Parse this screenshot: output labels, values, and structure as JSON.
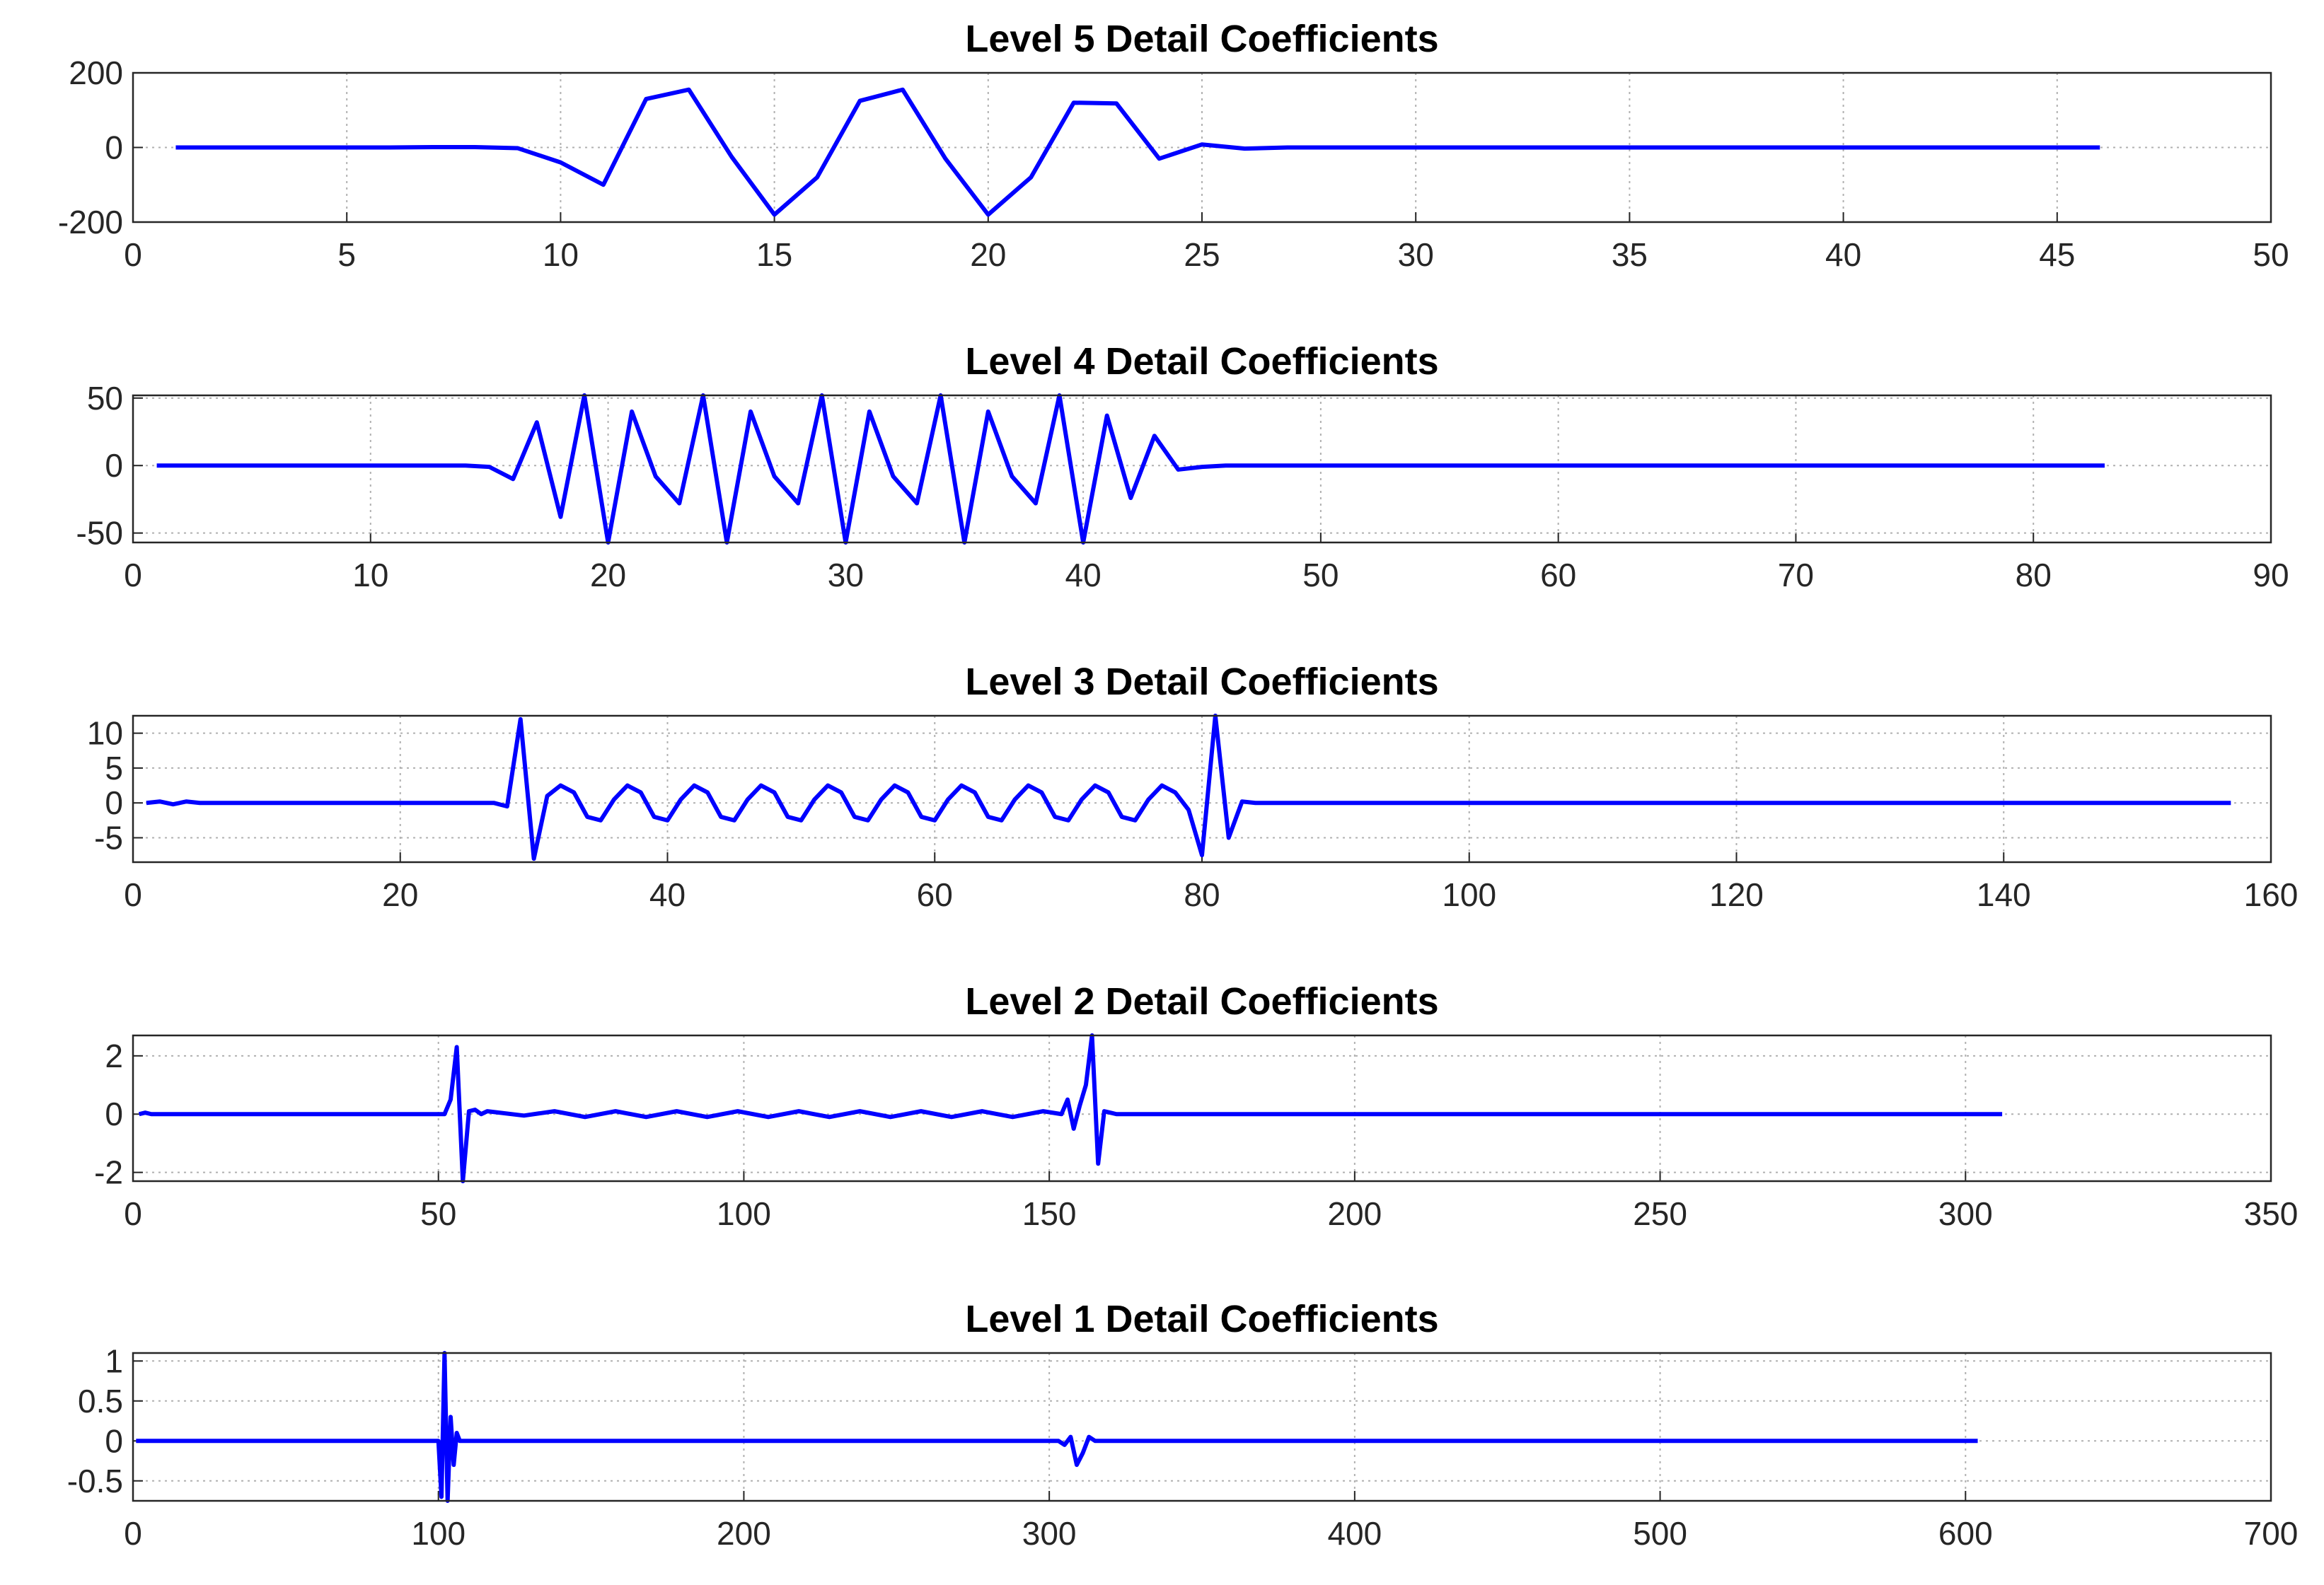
{
  "chart_data": [
    {
      "type": "line",
      "title": "Level 5 Detail Coefficients",
      "color": "#0000ff",
      "grid": true,
      "x": [
        1,
        6,
        7,
        8,
        9,
        10,
        11,
        12,
        13,
        14,
        15,
        16,
        17,
        18,
        19,
        20,
        21,
        22,
        23,
        24,
        25,
        26,
        27,
        46
      ],
      "values": [
        0,
        0,
        1,
        1,
        -2,
        -40,
        -100,
        130,
        155,
        -25,
        -180,
        -80,
        125,
        155,
        -30,
        -180,
        -80,
        120,
        118,
        -30,
        8,
        -3,
        0,
        0
      ],
      "xlim": [
        0,
        50
      ],
      "xticks": [
        0,
        5,
        10,
        15,
        20,
        25,
        30,
        35,
        40,
        45,
        50
      ],
      "ylim": [
        -200,
        200
      ],
      "yticks": [
        -200,
        0,
        200
      ]
    },
    {
      "type": "line",
      "title": "Level 4 Detail Coefficients",
      "color": "#0000ff",
      "grid": true,
      "x": [
        1,
        14,
        15,
        16,
        17,
        18,
        19,
        20,
        21,
        22,
        23,
        24,
        25,
        26,
        27,
        28,
        29,
        30,
        31,
        32,
        33,
        34,
        35,
        36,
        37,
        38,
        39,
        40,
        41,
        42,
        43,
        44,
        45,
        46,
        83
      ],
      "values": [
        0,
        0,
        -1,
        -10,
        32,
        -38,
        52,
        -57,
        40,
        -8,
        -28,
        52,
        -57,
        40,
        -8,
        -28,
        52,
        -57,
        40,
        -8,
        -28,
        52,
        -57,
        40,
        -8,
        -28,
        52,
        -57,
        37,
        -24,
        22,
        -3,
        -1,
        0,
        0
      ],
      "xlim": [
        0,
        90
      ],
      "xticks": [
        0,
        10,
        20,
        30,
        40,
        50,
        60,
        70,
        80,
        90
      ],
      "ylim": [
        -57,
        52
      ],
      "yticks": [
        -50,
        0,
        50
      ]
    },
    {
      "type": "line",
      "title": "Level 3 Detail Coefficients",
      "color": "#0000ff",
      "grid": true,
      "x": [
        1,
        2,
        3,
        4,
        5,
        27,
        28,
        29,
        30,
        31,
        32,
        33,
        34,
        35,
        36,
        37,
        38,
        39,
        40,
        41,
        42,
        43,
        44,
        45,
        46,
        47,
        48,
        49,
        50,
        51,
        52,
        53,
        54,
        55,
        56,
        57,
        58,
        59,
        60,
        61,
        62,
        63,
        64,
        65,
        66,
        67,
        68,
        69,
        70,
        71,
        72,
        73,
        74,
        75,
        76,
        77,
        78,
        79,
        80,
        81,
        82,
        83,
        84,
        157
      ],
      "values": [
        0,
        0.2,
        -0.2,
        0.2,
        0,
        0,
        -0.5,
        12,
        -8,
        1,
        2.5,
        1.5,
        -2,
        -2.5,
        0.5,
        2.5,
        1.5,
        -2,
        -2.5,
        0.5,
        2.5,
        1.5,
        -2,
        -2.5,
        0.5,
        2.5,
        1.5,
        -2,
        -2.5,
        0.5,
        2.5,
        1.5,
        -2,
        -2.5,
        0.5,
        2.5,
        1.5,
        -2,
        -2.5,
        0.5,
        2.5,
        1.5,
        -2,
        -2.5,
        0.5,
        2.5,
        1.5,
        -2,
        -2.5,
        0.5,
        2.5,
        1.5,
        -2,
        -2.5,
        0.5,
        2.5,
        1.5,
        -1,
        -7.5,
        12.5,
        -5,
        0.2,
        0,
        0
      ],
      "xlim": [
        0,
        160
      ],
      "xticks": [
        0,
        20,
        40,
        60,
        80,
        100,
        120,
        140,
        160
      ],
      "ylim": [
        -8.5,
        12.5
      ],
      "yticks": [
        -5,
        0,
        5,
        10
      ]
    },
    {
      "type": "line",
      "title": "Level 2 Detail Coefficients",
      "color": "#0000ff",
      "grid": true,
      "x": [
        1,
        2,
        3,
        50,
        51,
        52,
        53,
        54,
        55,
        56,
        57,
        58,
        64,
        69,
        74,
        79,
        84,
        89,
        94,
        99,
        104,
        109,
        114,
        119,
        124,
        129,
        134,
        139,
        144,
        149,
        152,
        153,
        154,
        155,
        156,
        157,
        158,
        159,
        160,
        161,
        306
      ],
      "values": [
        0,
        0.05,
        0,
        0,
        0,
        0.5,
        2.3,
        -2.3,
        0.1,
        0.15,
        0,
        0.1,
        -0.05,
        0.1,
        -0.1,
        0.1,
        -0.1,
        0.1,
        -0.1,
        0.1,
        -0.1,
        0.1,
        -0.1,
        0.1,
        -0.1,
        0.1,
        -0.1,
        0.1,
        -0.1,
        0.1,
        0,
        0.5,
        -0.5,
        0.3,
        1,
        2.7,
        -1.7,
        0.1,
        0.05,
        0,
        0
      ],
      "xlim": [
        0,
        350
      ],
      "xticks": [
        0,
        50,
        100,
        150,
        200,
        250,
        300,
        350
      ],
      "ylim": [
        -2.3,
        2.7
      ],
      "yticks": [
        -2,
        0,
        2
      ]
    },
    {
      "type": "line",
      "title": "Level 1 Detail Coefficients",
      "color": "#0000ff",
      "grid": true,
      "x": [
        1,
        100,
        101,
        102,
        103,
        104,
        105,
        106,
        107,
        303,
        305,
        307,
        309,
        311,
        313,
        315,
        604
      ],
      "values": [
        0,
        0,
        -0.7,
        1.1,
        -0.75,
        0.3,
        -0.3,
        0.1,
        0,
        0,
        -0.05,
        0.05,
        -0.3,
        -0.15,
        0.05,
        0,
        0
      ],
      "xlim": [
        0,
        700
      ],
      "xticks": [
        0,
        100,
        200,
        300,
        400,
        500,
        600,
        700
      ],
      "ylim": [
        -0.75,
        1.1
      ],
      "yticks": [
        -0.5,
        0,
        0.5,
        1
      ]
    }
  ]
}
